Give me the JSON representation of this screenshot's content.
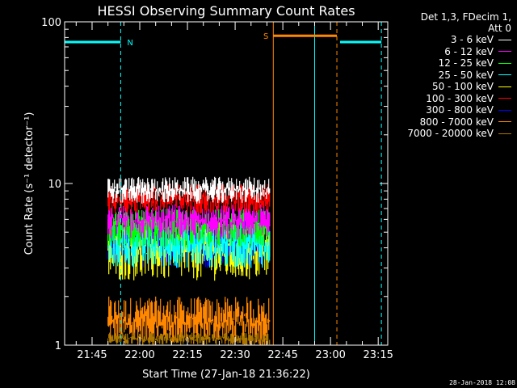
{
  "chart_data": {
    "type": "line",
    "title": "HESSI Observing Summary Count Rates",
    "xlabel": "Start Time (27-Jan-18 21:36:22)",
    "ylabel": "Count Rate (s⁻¹ detector⁻¹)",
    "yscale": "log",
    "ylim": [
      1,
      100
    ],
    "xlim": [
      "21:36:22",
      "23:18:00"
    ],
    "yticks": [
      "1",
      "10",
      "100"
    ],
    "xticks": [
      "21:45",
      "22:00",
      "22:15",
      "22:30",
      "22:45",
      "23:00",
      "23:15"
    ],
    "grid": false,
    "legend_position": "right",
    "legend_header": [
      "Det 1,3, FDecim 1,",
      "Att 0"
    ],
    "series": [
      {
        "name": "3 - 6 keV",
        "color": "#ffffff",
        "approx_range": [
          7.5,
          11.0
        ]
      },
      {
        "name": "6 - 12 keV",
        "color": "#ff00ff",
        "approx_range": [
          4.5,
          7.5
        ]
      },
      {
        "name": "12 - 25 keV",
        "color": "#00ff00",
        "approx_range": [
          4.0,
          7.0
        ]
      },
      {
        "name": "25 - 50 keV",
        "color": "#00ffff",
        "approx_range": [
          3.0,
          6.0
        ]
      },
      {
        "name": "50 - 100 keV",
        "color": "#ffff00",
        "approx_range": [
          2.5,
          6.0
        ]
      },
      {
        "name": "100 - 300 keV",
        "color": "#ff0000",
        "approx_range": [
          6.5,
          10.0
        ]
      },
      {
        "name": "300 - 800 keV",
        "color": "#0000ff",
        "approx_range": [
          3.0,
          6.0
        ]
      },
      {
        "name": "800 - 7000 keV",
        "color": "#ff8800",
        "approx_range": [
          1.0,
          2.0
        ]
      },
      {
        "name": "7000 - 20000 keV",
        "color": "#aa7700",
        "approx_range": [
          1.0,
          1.2
        ]
      }
    ],
    "data_window": [
      "21:50:00",
      "22:41:00"
    ],
    "annotations": [
      {
        "label": "N",
        "type": "night",
        "color": "#00ffff",
        "bars": [
          [
            "21:36:22",
            "21:54:00"
          ],
          [
            "23:03:00",
            "23:16:00"
          ]
        ],
        "y": 75,
        "vlines": [
          "21:54:00",
          "23:16:00"
        ],
        "dashed": true
      },
      {
        "label": "",
        "type": "day-start",
        "color": "#00ffff",
        "vlines": [
          "21:36:22",
          "22:55:00"
        ],
        "dashed": false
      },
      {
        "label": "S",
        "type": "saa",
        "color": "#ff8800",
        "bars": [
          [
            "22:42:00",
            "23:02:00"
          ]
        ],
        "y": 82,
        "vlines": [
          "22:42:00"
        ],
        "vlines_dashed": [
          "23:02:00"
        ]
      }
    ]
  },
  "footer": {
    "timestamp": "28-Jan-2018 12:08"
  }
}
